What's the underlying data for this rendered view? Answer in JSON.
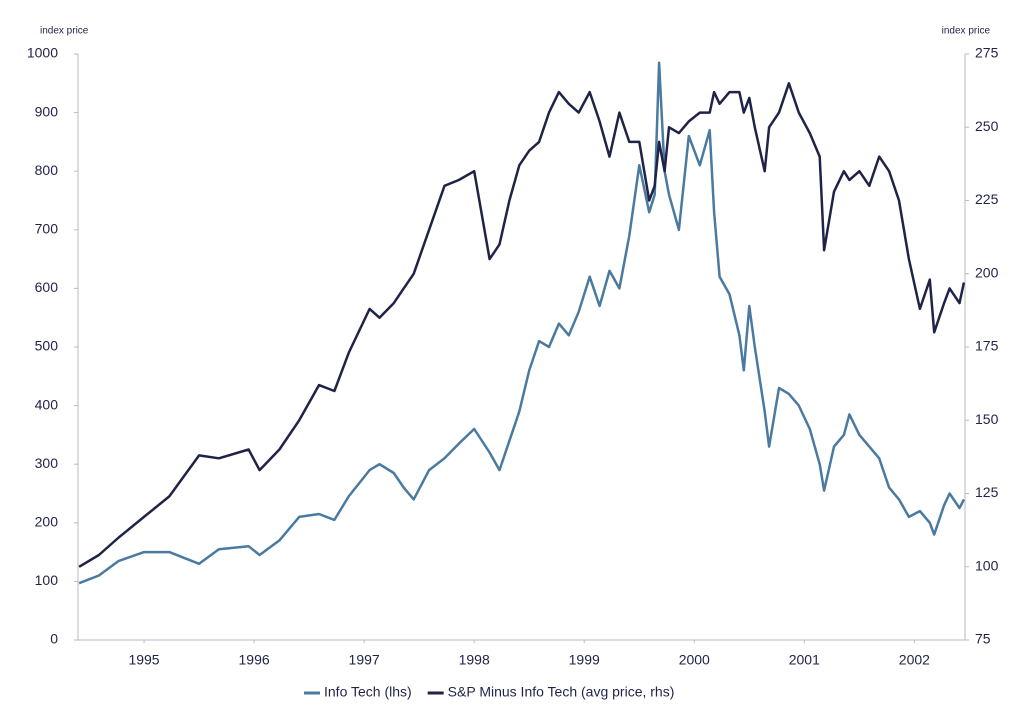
{
  "chart_data": {
    "type": "line",
    "left_axis_label": "index price",
    "right_axis_label": "index price",
    "x": [
      1994.91,
      1995.09,
      1995.27,
      1995.5,
      1995.73,
      1996.0,
      1996.18,
      1996.45,
      1996.55,
      1996.73,
      1996.91,
      1997.09,
      1997.23,
      1997.36,
      1997.55,
      1997.64,
      1997.77,
      1997.86,
      1997.95,
      1998.09,
      1998.23,
      1998.36,
      1998.5,
      1998.64,
      1998.73,
      1998.82,
      1998.91,
      1999.0,
      1999.09,
      1999.18,
      1999.27,
      1999.36,
      1999.45,
      1999.55,
      1999.64,
      1999.73,
      1999.82,
      1999.91,
      2000.0,
      2000.09,
      2000.14,
      2000.18,
      2000.23,
      2000.27,
      2000.36,
      2000.45,
      2000.55,
      2000.64,
      2000.68,
      2000.73,
      2000.82,
      2000.91,
      2000.95,
      2001.0,
      2001.05,
      2001.14,
      2001.18,
      2001.27,
      2001.36,
      2001.45,
      2001.55,
      2001.64,
      2001.68,
      2001.77,
      2001.86,
      2001.91,
      2002.0,
      2002.09,
      2002.18,
      2002.27,
      2002.36,
      2002.45,
      2002.55,
      2002.64,
      2002.68,
      2002.77,
      2002.82,
      2002.91,
      2002.95
    ],
    "series": [
      {
        "name": "Info Tech (lhs)",
        "color": "#4a7aa0",
        "axis": "y",
        "values": [
          97,
          110,
          135,
          150,
          150,
          130,
          155,
          160,
          145,
          170,
          210,
          215,
          205,
          245,
          290,
          300,
          285,
          260,
          240,
          290,
          310,
          335,
          360,
          320,
          290,
          340,
          390,
          460,
          510,
          500,
          540,
          520,
          560,
          620,
          570,
          630,
          600,
          690,
          810,
          730,
          760,
          985,
          800,
          760,
          700,
          860,
          810,
          870,
          730,
          620,
          590,
          520,
          460,
          570,
          500,
          390,
          330,
          430,
          420,
          400,
          360,
          300,
          255,
          330,
          350,
          385,
          350,
          330,
          310,
          260,
          240,
          210,
          220,
          200,
          180,
          230,
          250,
          225,
          240
        ]
      },
      {
        "name": "S&P Minus Info Tech (avg price, rhs)",
        "color": "#1f2347",
        "axis": "y2",
        "values": [
          100,
          104,
          110,
          117,
          124,
          138,
          137,
          140,
          133,
          140,
          150,
          162,
          160,
          173,
          188,
          185,
          190,
          195,
          200,
          215,
          230,
          232,
          235,
          205,
          210,
          225,
          237,
          242,
          245,
          255,
          262,
          258,
          255,
          262,
          252,
          240,
          255,
          245,
          245,
          225,
          230,
          245,
          235,
          250,
          248,
          252,
          255,
          255,
          262,
          258,
          262,
          262,
          255,
          260,
          250,
          235,
          250,
          255,
          265,
          255,
          248,
          240,
          208,
          228,
          235,
          232,
          235,
          230,
          240,
          235,
          225,
          205,
          188,
          198,
          180,
          190,
          195,
          190,
          197
        ]
      }
    ],
    "xlim": [
      1994.9,
      2002.96
    ],
    "xticks": [
      {
        "value": 1995.5,
        "label": "1995"
      },
      {
        "value": 1996.5,
        "label": "1996"
      },
      {
        "value": 1997.5,
        "label": "1997"
      },
      {
        "value": 1998.5,
        "label": "1998"
      },
      {
        "value": 1999.5,
        "label": "1999"
      },
      {
        "value": 2000.5,
        "label": "2000"
      },
      {
        "value": 2001.5,
        "label": "2001"
      },
      {
        "value": 2002.5,
        "label": "2002"
      }
    ],
    "ylim": [
      0,
      1000
    ],
    "yticks": [
      0,
      100,
      200,
      300,
      400,
      500,
      600,
      700,
      800,
      900,
      1000
    ],
    "y2lim": [
      75,
      275
    ],
    "y2ticks": [
      75,
      100,
      125,
      150,
      175,
      200,
      225,
      250,
      275
    ],
    "legend": "bottom"
  }
}
